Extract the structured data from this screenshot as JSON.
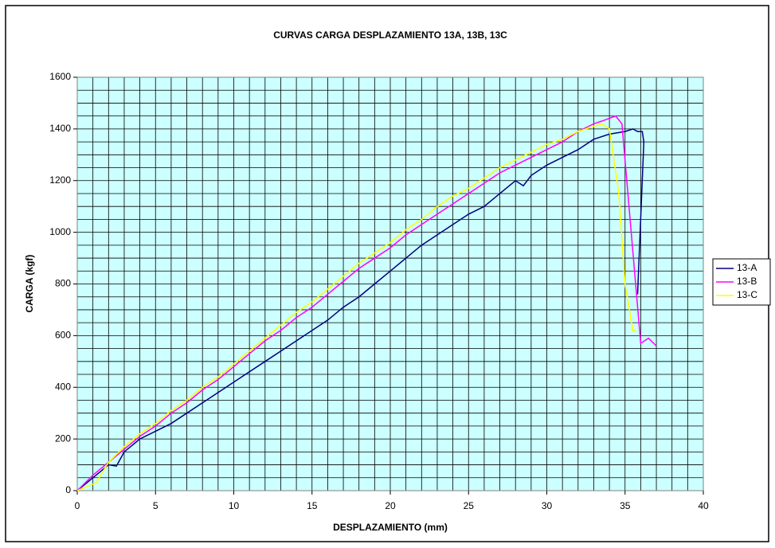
{
  "chart_data": {
    "type": "line",
    "title": "CURVAS CARGA DESPLAZAMIENTO 13A, 13B, 13C",
    "xlabel": "DESPLAZAMIENTO (mm)",
    "ylabel": "CARGA (kgf)",
    "xlim": [
      0,
      40
    ],
    "ylim": [
      0,
      1600
    ],
    "xticks": [
      0,
      5,
      10,
      15,
      20,
      25,
      30,
      35,
      40
    ],
    "yticks": [
      0,
      200,
      400,
      600,
      800,
      1000,
      1200,
      1400,
      1600
    ],
    "grid": true,
    "grid_x_step": 1,
    "grid_y_step": 50,
    "background": "#ccffff",
    "legend": "right",
    "series": [
      {
        "name": "13-A",
        "color": "#000080",
        "x": [
          0,
          1,
          2,
          2.5,
          3,
          4,
          5,
          6,
          7,
          8,
          9,
          10,
          11,
          12,
          13,
          14,
          15,
          16,
          17,
          18,
          19,
          20,
          21,
          22,
          23,
          24,
          25,
          26,
          27,
          28,
          28.5,
          29,
          30,
          31,
          32,
          33,
          34,
          35,
          35.5,
          35.8,
          36.1,
          36.2,
          35.8
        ],
        "values": [
          0,
          50,
          100,
          95,
          150,
          200,
          230,
          260,
          300,
          340,
          380,
          420,
          460,
          500,
          540,
          580,
          620,
          660,
          710,
          750,
          800,
          850,
          900,
          950,
          990,
          1030,
          1070,
          1100,
          1150,
          1200,
          1180,
          1220,
          1260,
          1290,
          1320,
          1360,
          1380,
          1390,
          1400,
          1390,
          1390,
          1350,
          760
        ]
      },
      {
        "name": "13-B",
        "color": "#ff00ff",
        "x": [
          0,
          1,
          2,
          3,
          4,
          5,
          6,
          7,
          8,
          9,
          10,
          11,
          12,
          13,
          14,
          15,
          16,
          17,
          18,
          19,
          20,
          21,
          22,
          23,
          24,
          25,
          26,
          27,
          28,
          29,
          30,
          31,
          32,
          33,
          33.5,
          34.4,
          34.8,
          36,
          36.5,
          37
        ],
        "values": [
          0,
          60,
          110,
          160,
          210,
          250,
          300,
          340,
          390,
          430,
          480,
          530,
          580,
          620,
          670,
          710,
          760,
          810,
          860,
          900,
          940,
          990,
          1030,
          1070,
          1110,
          1150,
          1190,
          1230,
          1260,
          1290,
          1320,
          1350,
          1390,
          1420,
          1430,
          1450,
          1420,
          570,
          590,
          560
        ]
      },
      {
        "name": "13-C",
        "color": "#ffff00",
        "x": [
          0,
          1.2,
          2,
          3,
          4,
          5,
          6,
          7,
          8,
          9,
          10,
          11,
          12,
          13,
          14,
          15,
          16,
          17,
          18,
          19,
          20,
          21,
          22,
          23,
          24,
          25,
          26,
          27,
          28,
          29,
          30,
          31,
          32,
          33,
          33.5,
          34,
          34.6,
          35,
          35.5,
          35.7
        ],
        "values": [
          0,
          30,
          110,
          170,
          220,
          260,
          310,
          350,
          400,
          440,
          490,
          540,
          590,
          640,
          690,
          730,
          780,
          830,
          880,
          920,
          960,
          1010,
          1050,
          1100,
          1140,
          1170,
          1210,
          1250,
          1280,
          1310,
          1340,
          1360,
          1390,
          1410,
          1420,
          1400,
          1150,
          800,
          620,
          620
        ]
      }
    ]
  }
}
